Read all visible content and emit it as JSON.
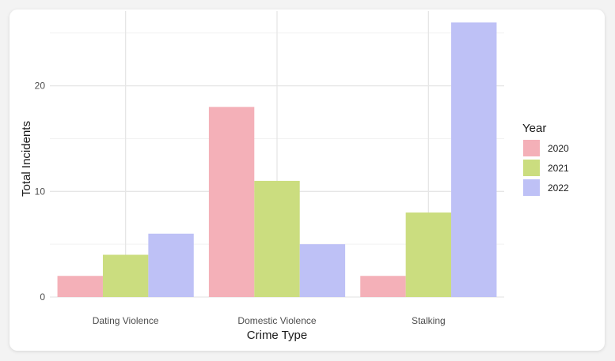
{
  "chart_data": {
    "type": "bar",
    "xlabel": "Crime Type",
    "ylabel": "Total Incidents",
    "categories": [
      "Dating Violence",
      "Domestic Violence",
      "Stalking"
    ],
    "series": [
      {
        "name": "2020",
        "color": "#f4b0b8",
        "values": [
          2,
          18,
          2
        ]
      },
      {
        "name": "2021",
        "color": "#cbdd7f",
        "values": [
          4,
          11,
          8
        ]
      },
      {
        "name": "2022",
        "color": "#bec1f6",
        "values": [
          6,
          5,
          26
        ]
      }
    ],
    "ylim": [
      0,
      27
    ],
    "yticks": [
      0,
      10,
      20
    ],
    "yticks_labels": [
      "0",
      "10",
      "20"
    ],
    "grid": true,
    "legend": {
      "title": "Year",
      "placement": "right"
    }
  }
}
